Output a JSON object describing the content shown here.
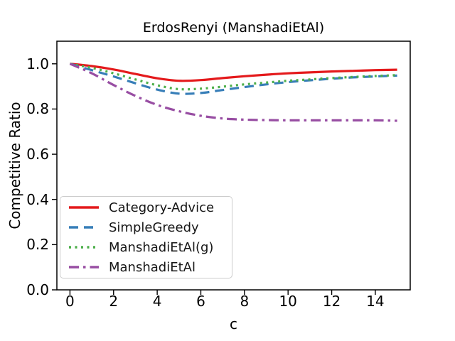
{
  "chart_data": {
    "type": "line",
    "title": "ErdosRenyi (ManshadiEtAl)",
    "xlabel": "c",
    "ylabel": "Competitive Ratio",
    "xlim": [
      -0.6,
      15.6
    ],
    "ylim": [
      0.0,
      1.1
    ],
    "grid": false,
    "legend_position": "lower left",
    "xticks": [
      0,
      2,
      4,
      6,
      8,
      10,
      12,
      14
    ],
    "xtick_labels": [
      "0",
      "2",
      "4",
      "6",
      "8",
      "10",
      "12",
      "14"
    ],
    "yticks": [
      0.0,
      0.2,
      0.4,
      0.6,
      0.8,
      1.0
    ],
    "ytick_labels": [
      "0.0",
      "0.2",
      "0.4",
      "0.6",
      "0.8",
      "1.0"
    ],
    "x": [
      0,
      1,
      2,
      3,
      4,
      5,
      6,
      7,
      8,
      9,
      10,
      11,
      12,
      13,
      14,
      15
    ],
    "series": [
      {
        "name": "Category-Advice",
        "color": "#e41a1c",
        "style": "solid",
        "values": [
          1.0,
          0.99,
          0.975,
          0.955,
          0.936,
          0.925,
          0.928,
          0.937,
          0.945,
          0.952,
          0.958,
          0.962,
          0.966,
          0.969,
          0.972,
          0.974
        ]
      },
      {
        "name": "SimpleGreedy",
        "color": "#377eb8",
        "style": "dashed",
        "values": [
          1.0,
          0.972,
          0.944,
          0.914,
          0.886,
          0.868,
          0.871,
          0.884,
          0.897,
          0.909,
          0.919,
          0.927,
          0.934,
          0.94,
          0.944,
          0.948
        ]
      },
      {
        "name": "ManshadiEtAl(g)",
        "color": "#4daf4a",
        "style": "dotted",
        "values": [
          1.0,
          0.982,
          0.958,
          0.931,
          0.905,
          0.888,
          0.89,
          0.899,
          0.909,
          0.917,
          0.925,
          0.931,
          0.937,
          0.942,
          0.946,
          0.95
        ]
      },
      {
        "name": "ManshadiEtAl",
        "color": "#984ea3",
        "style": "dashdot",
        "values": [
          1.0,
          0.958,
          0.906,
          0.858,
          0.818,
          0.79,
          0.77,
          0.758,
          0.753,
          0.751,
          0.75,
          0.75,
          0.75,
          0.75,
          0.75,
          0.748
        ]
      }
    ]
  }
}
